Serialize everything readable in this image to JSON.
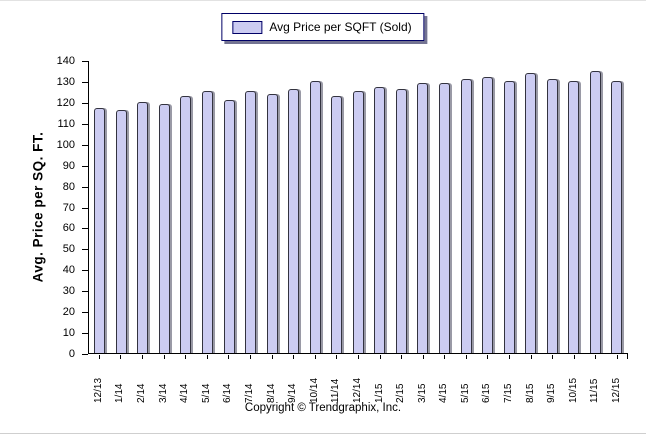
{
  "legend": {
    "label": "Avg Price per SQFT (Sold)"
  },
  "footer": {
    "copyright": "Copyright © Trendgraphix, Inc."
  },
  "colors": {
    "bar_fill": "#ccccf2",
    "bar_border": "#33333f",
    "bar_shadow": "#9a9aa6",
    "legend_border": "#000066"
  },
  "chart_data": {
    "type": "bar",
    "title": "",
    "legend": "Avg Price per SQFT (Sold)",
    "legend_position": "top-center",
    "categories": [
      "12/13",
      "1/14",
      "2/14",
      "3/14",
      "4/14",
      "5/14",
      "6/14",
      "7/14",
      "8/14",
      "9/14",
      "10/14",
      "11/14",
      "12/14",
      "1/15",
      "2/15",
      "3/15",
      "4/15",
      "5/15",
      "6/15",
      "7/15",
      "8/15",
      "9/15",
      "10/15",
      "11/15",
      "12/15"
    ],
    "values": [
      117,
      116,
      120,
      119,
      123,
      125,
      121,
      125,
      124,
      126,
      130,
      123,
      125,
      127,
      126,
      129,
      129,
      131,
      132,
      130,
      134,
      131,
      130,
      135,
      130
    ],
    "xlabel": "",
    "ylabel": "Avg. Price per SQ. FT.",
    "ylim": [
      0,
      140
    ],
    "ytick_step": 10,
    "grid": false
  }
}
